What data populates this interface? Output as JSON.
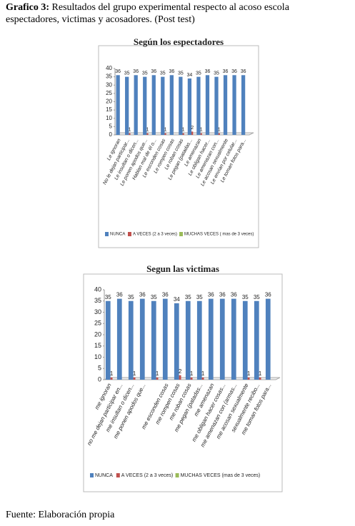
{
  "caption": {
    "label": "Grafico 3:",
    "line1": "Resultados del grupo experimental respecto al acoso escola",
    "line2": "espectadores, victimas y acosadores. (Post test)"
  },
  "chart_data": [
    {
      "type": "bar",
      "title": "Según los espectadores",
      "categories": [
        "Le ignoran",
        "No le dejan participar...",
        "Le insultan o dicen...",
        "Le ponen apodos que...",
        "Hablan mal de él o...",
        "Le esconden cosas",
        "Le rompen cosas",
        "Le roban cosas",
        "Le pegan (patadas...",
        "Le amenazan",
        "Le obligan hacer...",
        "Le amenazan con...",
        "Le acosan sexualmente",
        "Le envían por celular...",
        "Le toman fotos para..."
      ],
      "series": [
        {
          "name": "NUNCA",
          "color": "#4f81bd",
          "values": [
            36,
            35,
            36,
            35,
            36,
            35,
            36,
            35,
            34,
            35,
            36,
            35,
            36,
            36,
            36
          ]
        },
        {
          "name": "A VECES (2 a 3 veces)",
          "color": "#c0504d",
          "values": [
            0,
            1,
            0,
            1,
            0,
            1,
            0,
            1,
            2,
            1,
            0,
            1,
            0,
            0,
            0
          ]
        },
        {
          "name": "MUCHAS VECES ( mas de 3 veces)",
          "color": "#9bbb59",
          "values": [
            0,
            0,
            0,
            0,
            0,
            0,
            0,
            0,
            0,
            0,
            0,
            0,
            0,
            0,
            0
          ]
        }
      ],
      "ylim": [
        0,
        40
      ],
      "yticks": [
        0,
        5,
        10,
        15,
        20,
        25,
        30,
        35,
        40
      ],
      "legend": "bottom"
    },
    {
      "type": "bar",
      "title": "Segun las victimas",
      "categories": [
        "me ignoran",
        "no me dejan participar en...",
        "me insultan o dicen...",
        "me ponen apodos que...",
        null,
        "me esconden cosas",
        "me rompen cosas",
        "me roban cosas",
        "me pegan (patadas...",
        "me amenazan",
        "me obligan hacer cosas...",
        "me amenazan con (armas...",
        "me acosan sexualmente",
        "sexualmente recibo...",
        "me toman fotos para..."
      ],
      "series": [
        {
          "name": "NUNCA",
          "color": "#4f81bd",
          "values": [
            35,
            36,
            35,
            36,
            35,
            36,
            34,
            35,
            35,
            36,
            36,
            36,
            35,
            35,
            36
          ]
        },
        {
          "name": "A VECES (2 a 3 veces)",
          "color": "#c0504d",
          "values": [
            1,
            0,
            1,
            0,
            1,
            0,
            2,
            1,
            1,
            0,
            0,
            0,
            1,
            1,
            0
          ]
        },
        {
          "name": "MUCHAS VECES (mas de 3 veces)",
          "color": "#9bbb59",
          "values": [
            0,
            0,
            0,
            0,
            0,
            0,
            0,
            0,
            0,
            0,
            0,
            0,
            0,
            0,
            0
          ]
        }
      ],
      "ylim": [
        0,
        40
      ],
      "yticks": [
        0,
        5,
        10,
        15,
        20,
        25,
        30,
        35,
        40
      ],
      "legend": "bottom"
    }
  ],
  "source": "Fuente: Elaboración propia"
}
